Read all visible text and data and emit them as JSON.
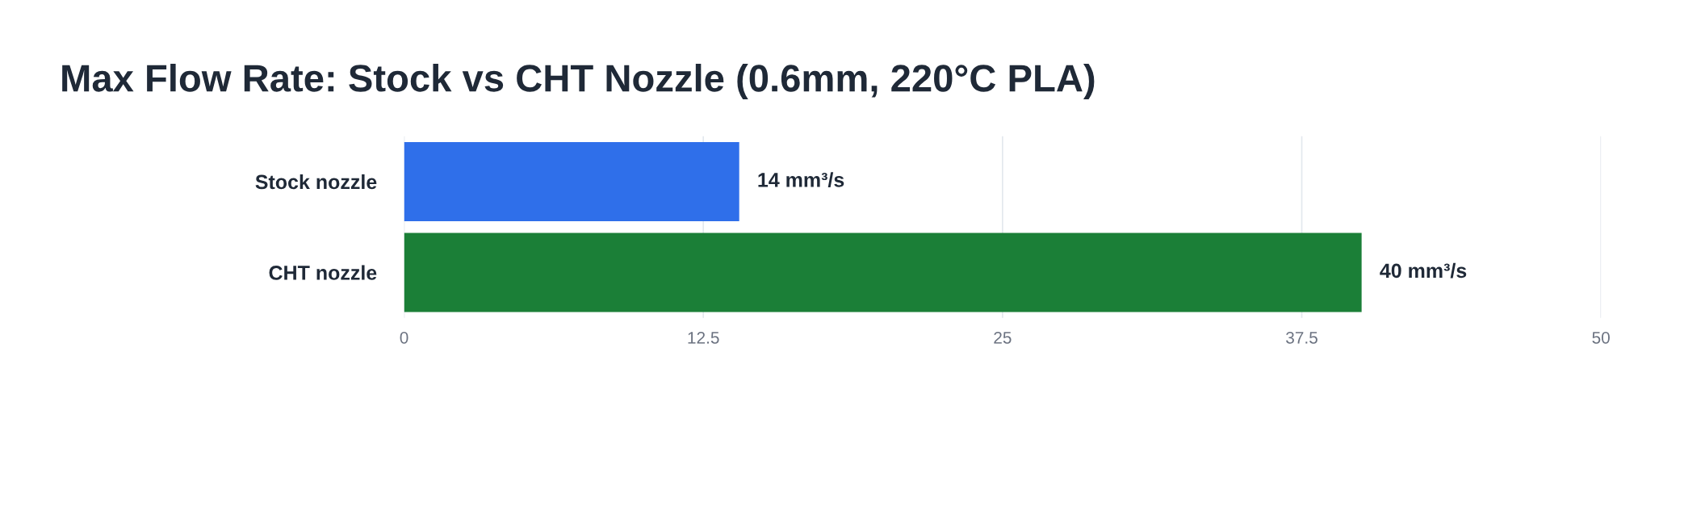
{
  "chart_data": {
    "type": "bar",
    "orientation": "horizontal",
    "title": "Max Flow Rate: Stock vs CHT Nozzle (0.6mm, 220°C PLA)",
    "categories": [
      "Stock nozzle",
      "CHT nozzle"
    ],
    "values": [
      14,
      40
    ],
    "colors": [
      "#2f6fea",
      "#1b7f37"
    ],
    "value_labels": [
      "14 mm³/s",
      "40 mm³/s"
    ],
    "xlim": [
      0,
      50
    ],
    "xticks": [
      0,
      12.5,
      25,
      37.5,
      50
    ],
    "grid": "x"
  }
}
